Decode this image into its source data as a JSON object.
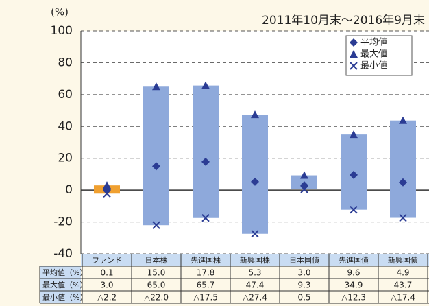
{
  "chart_data": {
    "type": "range",
    "unit_label": "(%)",
    "subtitle": "2011年10月末～2016年9月末",
    "categories": [
      "ファンド",
      "日本株",
      "先進国株",
      "新興国株",
      "日本国債",
      "先進国債",
      "新興国債"
    ],
    "bar_colors": [
      "#f0a030",
      "#8ea9db",
      "#8ea9db",
      "#8ea9db",
      "#8ea9db",
      "#8ea9db",
      "#8ea9db"
    ],
    "series": [
      {
        "name": "平均値",
        "row_label": "平均値（%）",
        "marker": "diamond",
        "color": "#2b3c94",
        "values": [
          0.1,
          15.0,
          17.8,
          5.3,
          3.0,
          9.6,
          4.9
        ],
        "value_labels": [
          "0.1",
          "15.0",
          "17.8",
          "5.3",
          "3.0",
          "9.6",
          "4.9"
        ]
      },
      {
        "name": "最大値",
        "row_label": "最大値（%）",
        "marker": "triangle",
        "color": "#2b3c94",
        "values": [
          3.0,
          65.0,
          65.7,
          47.4,
          9.3,
          34.9,
          43.7
        ],
        "value_labels": [
          "3.0",
          "65.0",
          "65.7",
          "47.4",
          "9.3",
          "34.9",
          "43.7"
        ]
      },
      {
        "name": "最小値",
        "row_label": "最小値（%）",
        "marker": "cross",
        "color": "#2b3c94",
        "values": [
          -2.2,
          -22.0,
          -17.5,
          -27.4,
          0.5,
          -12.3,
          -17.4
        ],
        "value_labels": [
          "△2.2",
          "△22.0",
          "△17.5",
          "△27.4",
          "0.5",
          "△12.3",
          "△17.4"
        ]
      }
    ],
    "ylim": [
      -40,
      100
    ],
    "yticks": [
      -40,
      -20,
      0,
      20,
      40,
      60,
      80,
      100
    ],
    "grid": true
  }
}
